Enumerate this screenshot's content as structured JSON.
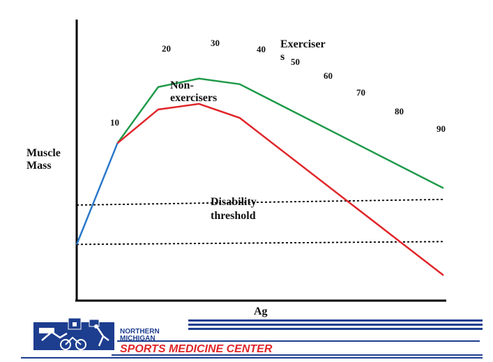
{
  "chart_data": {
    "type": "line",
    "ylabel": "Muscle\nMass",
    "xlabel": "Ag",
    "x": [
      0,
      10,
      20,
      30,
      40,
      50,
      60,
      70,
      80,
      90
    ],
    "series": [
      {
        "name": "",
        "color": "#2a78c9",
        "points": [
          [
            0,
            20
          ],
          [
            10,
            56
          ]
        ]
      },
      {
        "name": "Exerciser\ns",
        "color": "#1f9a4a",
        "points": [
          [
            10,
            56
          ],
          [
            20,
            76
          ],
          [
            30,
            79
          ],
          [
            40,
            77
          ],
          [
            90,
            40
          ]
        ]
      },
      {
        "name": "Non-\nexercisers",
        "color": "#e0262a",
        "points": [
          [
            10,
            56
          ],
          [
            20,
            68
          ],
          [
            30,
            70
          ],
          [
            40,
            65
          ],
          [
            90,
            9
          ]
        ]
      }
    ],
    "thresholds": [
      {
        "y_start": 34,
        "y_end": 36
      },
      {
        "y_start": 20,
        "y_end": 21
      }
    ],
    "threshold_label": "Disability\nthreshold",
    "tick_labels": [
      "10",
      "20",
      "30",
      "40",
      "50",
      "60",
      "70",
      "80",
      "90"
    ],
    "grid": false,
    "legend": "inline labels"
  },
  "footer": {
    "org_line1": "NORTHERN",
    "org_line2": "MICHIGAN",
    "org_name": "SPORTS MEDICINE CENTER",
    "accent_color": "#e0262a",
    "brand_color": "#1d3d8f"
  }
}
